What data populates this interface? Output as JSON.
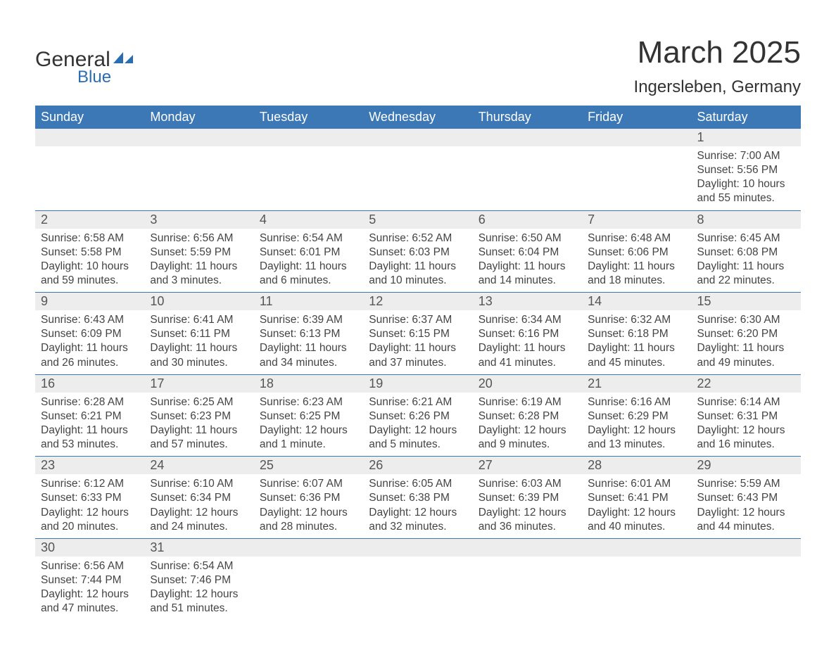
{
  "logo": {
    "line1": "General",
    "line2": "Blue"
  },
  "title": "March 2025",
  "location": "Ingersleben, Germany",
  "colors": {
    "header_bg": "#3b78b5",
    "header_text": "#ffffff",
    "row_separator": "#3b78b5",
    "daynum_bg": "#ededed",
    "text": "#444444",
    "daynum_text": "#555555",
    "logo_blue": "#2a6db0"
  },
  "fonts": {
    "title_size": 44,
    "location_size": 24,
    "weekday_size": 18,
    "daynum_size": 18,
    "body_size": 15.5
  },
  "weekdays": [
    "Sunday",
    "Monday",
    "Tuesday",
    "Wednesday",
    "Thursday",
    "Friday",
    "Saturday"
  ],
  "labels": {
    "sunrise": "Sunrise",
    "sunset": "Sunset",
    "daylight": "Daylight"
  },
  "weeks": [
    [
      null,
      null,
      null,
      null,
      null,
      null,
      {
        "day": "1",
        "sunrise": "7:00 AM",
        "sunset": "5:56 PM",
        "daylight": "10 hours and 55 minutes."
      }
    ],
    [
      {
        "day": "2",
        "sunrise": "6:58 AM",
        "sunset": "5:58 PM",
        "daylight": "10 hours and 59 minutes."
      },
      {
        "day": "3",
        "sunrise": "6:56 AM",
        "sunset": "5:59 PM",
        "daylight": "11 hours and 3 minutes."
      },
      {
        "day": "4",
        "sunrise": "6:54 AM",
        "sunset": "6:01 PM",
        "daylight": "11 hours and 6 minutes."
      },
      {
        "day": "5",
        "sunrise": "6:52 AM",
        "sunset": "6:03 PM",
        "daylight": "11 hours and 10 minutes."
      },
      {
        "day": "6",
        "sunrise": "6:50 AM",
        "sunset": "6:04 PM",
        "daylight": "11 hours and 14 minutes."
      },
      {
        "day": "7",
        "sunrise": "6:48 AM",
        "sunset": "6:06 PM",
        "daylight": "11 hours and 18 minutes."
      },
      {
        "day": "8",
        "sunrise": "6:45 AM",
        "sunset": "6:08 PM",
        "daylight": "11 hours and 22 minutes."
      }
    ],
    [
      {
        "day": "9",
        "sunrise": "6:43 AM",
        "sunset": "6:09 PM",
        "daylight": "11 hours and 26 minutes."
      },
      {
        "day": "10",
        "sunrise": "6:41 AM",
        "sunset": "6:11 PM",
        "daylight": "11 hours and 30 minutes."
      },
      {
        "day": "11",
        "sunrise": "6:39 AM",
        "sunset": "6:13 PM",
        "daylight": "11 hours and 34 minutes."
      },
      {
        "day": "12",
        "sunrise": "6:37 AM",
        "sunset": "6:15 PM",
        "daylight": "11 hours and 37 minutes."
      },
      {
        "day": "13",
        "sunrise": "6:34 AM",
        "sunset": "6:16 PM",
        "daylight": "11 hours and 41 minutes."
      },
      {
        "day": "14",
        "sunrise": "6:32 AM",
        "sunset": "6:18 PM",
        "daylight": "11 hours and 45 minutes."
      },
      {
        "day": "15",
        "sunrise": "6:30 AM",
        "sunset": "6:20 PM",
        "daylight": "11 hours and 49 minutes."
      }
    ],
    [
      {
        "day": "16",
        "sunrise": "6:28 AM",
        "sunset": "6:21 PM",
        "daylight": "11 hours and 53 minutes."
      },
      {
        "day": "17",
        "sunrise": "6:25 AM",
        "sunset": "6:23 PM",
        "daylight": "11 hours and 57 minutes."
      },
      {
        "day": "18",
        "sunrise": "6:23 AM",
        "sunset": "6:25 PM",
        "daylight": "12 hours and 1 minute."
      },
      {
        "day": "19",
        "sunrise": "6:21 AM",
        "sunset": "6:26 PM",
        "daylight": "12 hours and 5 minutes."
      },
      {
        "day": "20",
        "sunrise": "6:19 AM",
        "sunset": "6:28 PM",
        "daylight": "12 hours and 9 minutes."
      },
      {
        "day": "21",
        "sunrise": "6:16 AM",
        "sunset": "6:29 PM",
        "daylight": "12 hours and 13 minutes."
      },
      {
        "day": "22",
        "sunrise": "6:14 AM",
        "sunset": "6:31 PM",
        "daylight": "12 hours and 16 minutes."
      }
    ],
    [
      {
        "day": "23",
        "sunrise": "6:12 AM",
        "sunset": "6:33 PM",
        "daylight": "12 hours and 20 minutes."
      },
      {
        "day": "24",
        "sunrise": "6:10 AM",
        "sunset": "6:34 PM",
        "daylight": "12 hours and 24 minutes."
      },
      {
        "day": "25",
        "sunrise": "6:07 AM",
        "sunset": "6:36 PM",
        "daylight": "12 hours and 28 minutes."
      },
      {
        "day": "26",
        "sunrise": "6:05 AM",
        "sunset": "6:38 PM",
        "daylight": "12 hours and 32 minutes."
      },
      {
        "day": "27",
        "sunrise": "6:03 AM",
        "sunset": "6:39 PM",
        "daylight": "12 hours and 36 minutes."
      },
      {
        "day": "28",
        "sunrise": "6:01 AM",
        "sunset": "6:41 PM",
        "daylight": "12 hours and 40 minutes."
      },
      {
        "day": "29",
        "sunrise": "5:59 AM",
        "sunset": "6:43 PM",
        "daylight": "12 hours and 44 minutes."
      }
    ],
    [
      {
        "day": "30",
        "sunrise": "6:56 AM",
        "sunset": "7:44 PM",
        "daylight": "12 hours and 47 minutes."
      },
      {
        "day": "31",
        "sunrise": "6:54 AM",
        "sunset": "7:46 PM",
        "daylight": "12 hours and 51 minutes."
      },
      null,
      null,
      null,
      null,
      null
    ]
  ]
}
